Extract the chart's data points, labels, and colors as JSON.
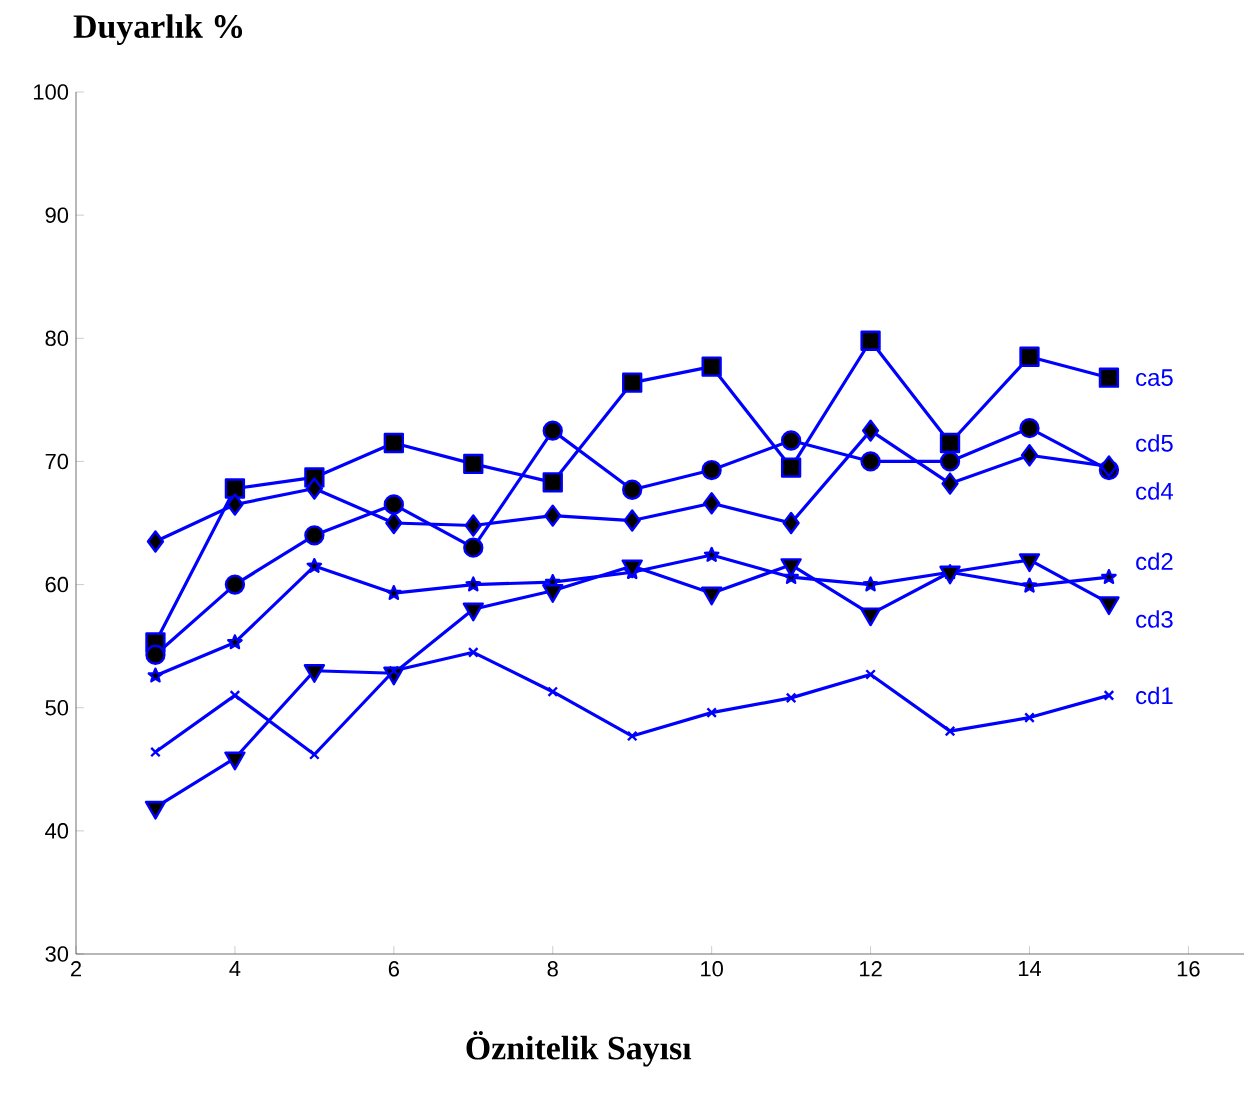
{
  "chart_data": {
    "type": "line",
    "xlabel": "Öznitelik Sayısı",
    "ylabel": "Duyarlık %",
    "x": [
      3,
      4,
      5,
      6,
      7,
      8,
      9,
      10,
      11,
      12,
      13,
      14,
      15
    ],
    "series": [
      {
        "name": "ca5",
        "color": "#0000ff",
        "marker": "square",
        "values": [
          55.3,
          67.8,
          68.7,
          71.5,
          69.8,
          68.3,
          76.4,
          77.7,
          69.5,
          79.8,
          71.5,
          78.5,
          76.8
        ]
      },
      {
        "name": "cd5",
        "color": "#0000ff",
        "marker": "circle",
        "values": [
          54.3,
          60,
          64,
          66.5,
          63,
          72.5,
          67.7,
          69.3,
          71.7,
          70,
          70,
          72.7,
          69.3
        ]
      },
      {
        "name": "cd4",
        "color": "#0000ff",
        "marker": "diamond",
        "values": [
          63.5,
          66.5,
          67.8,
          65,
          64.8,
          65.6,
          65.2,
          66.6,
          65,
          72.5,
          68.2,
          70.5,
          69.6
        ]
      },
      {
        "name": "cd2",
        "color": "#0000ff",
        "marker": "star",
        "values": [
          52.6,
          55.3,
          61.5,
          59.3,
          60,
          60.2,
          61,
          62.4,
          60.6,
          60,
          61,
          59.9,
          60.6
        ]
      },
      {
        "name": "cd3",
        "color": "#0000ff",
        "marker": "triangle",
        "values": [
          41.9,
          45.9,
          53,
          52.8,
          58,
          59.5,
          61.5,
          59.3,
          61.6,
          57.6,
          61,
          62,
          58.5
        ]
      },
      {
        "name": "cd1",
        "color": "#0000ff",
        "marker": "cross",
        "values": [
          46.4,
          51,
          46.2,
          53,
          54.5,
          51.3,
          47.7,
          49.6,
          50.8,
          52.7,
          48.1,
          49.2,
          51
        ]
      }
    ],
    "xlim": [
      2,
      16.7
    ],
    "xticks": [
      2,
      4,
      6,
      8,
      10,
      12,
      14,
      16
    ],
    "ylim": [
      30,
      100
    ],
    "yticks": [
      30,
      40,
      50,
      60,
      70,
      80,
      90,
      100
    ],
    "grid": false,
    "line_style": "solid"
  }
}
